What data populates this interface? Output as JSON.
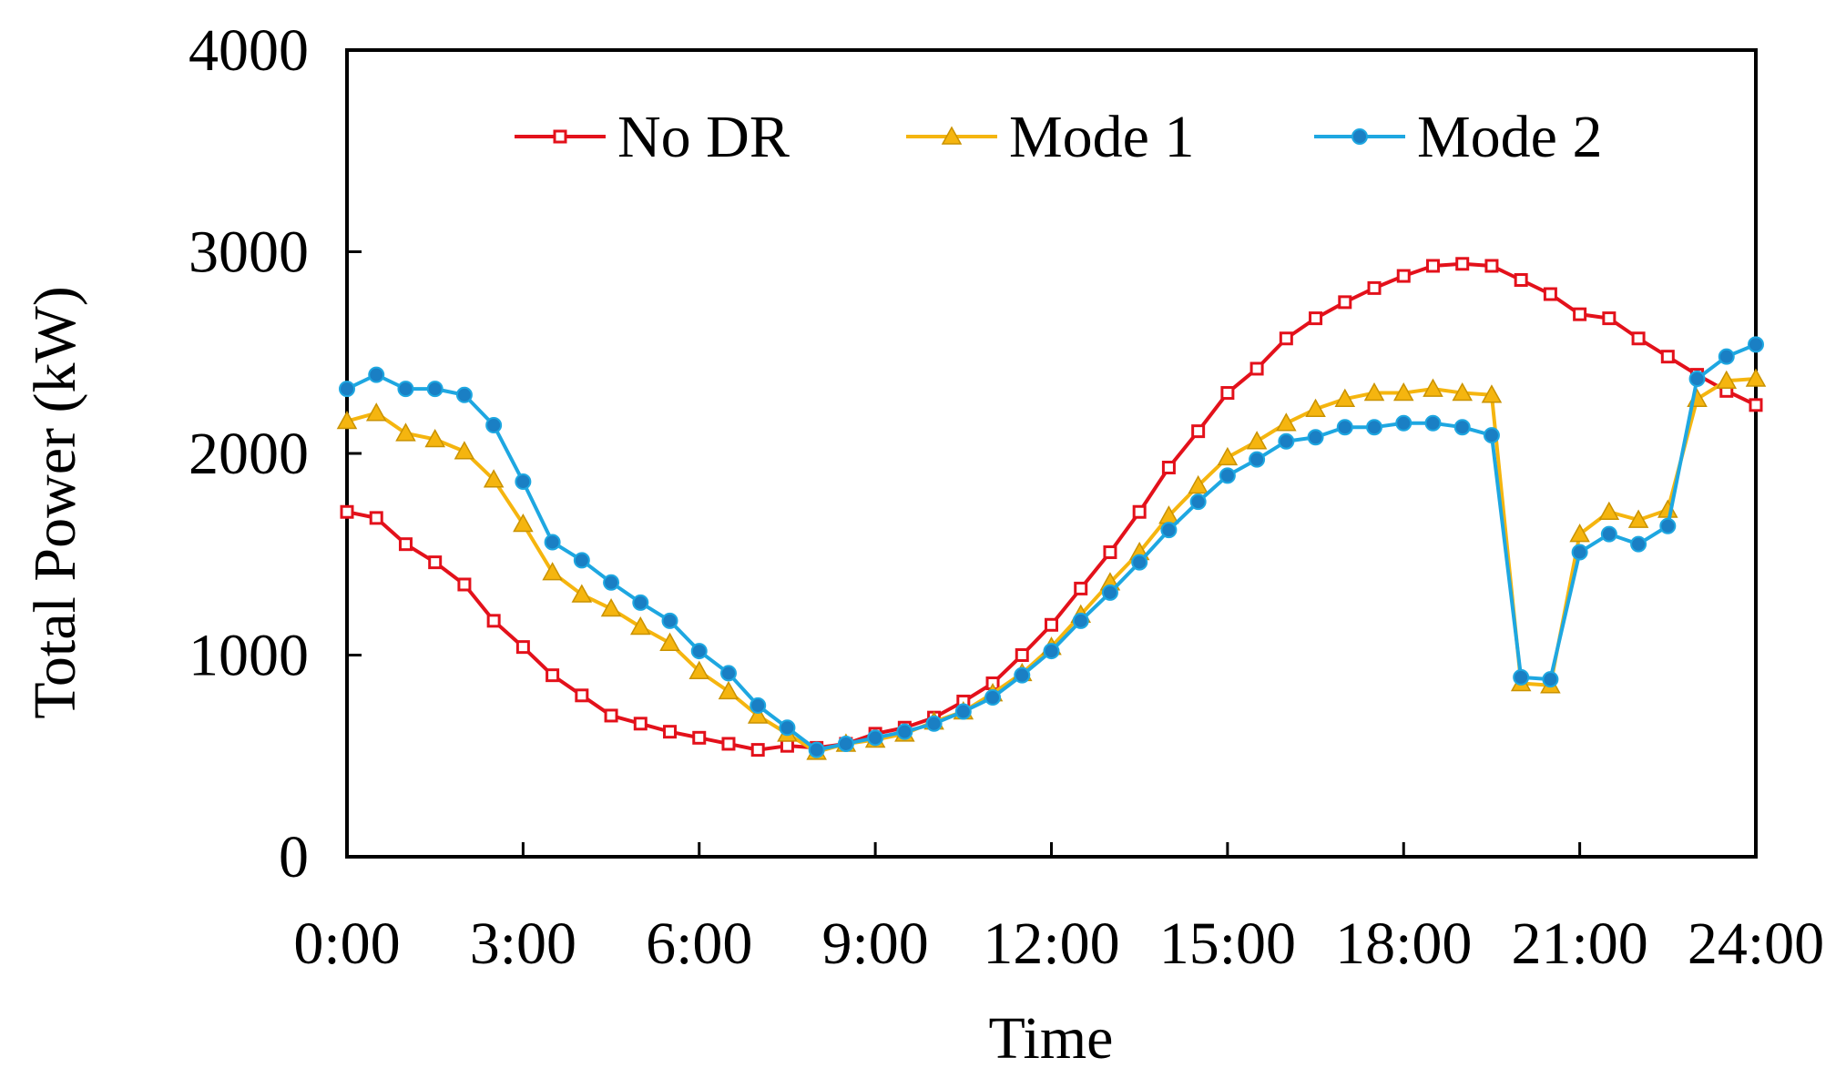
{
  "chart_data": {
    "type": "line",
    "title": "",
    "xlabel": "Time",
    "ylabel": "Total Power (kW)",
    "xlim": [
      0,
      24
    ],
    "ylim": [
      0,
      4000
    ],
    "x_ticks": [
      {
        "value": 0,
        "label": "0:00"
      },
      {
        "value": 3,
        "label": "3:00"
      },
      {
        "value": 6,
        "label": "6:00"
      },
      {
        "value": 9,
        "label": "9:00"
      },
      {
        "value": 12,
        "label": "12:00"
      },
      {
        "value": 15,
        "label": "15:00"
      },
      {
        "value": 18,
        "label": "18:00"
      },
      {
        "value": 21,
        "label": "21:00"
      },
      {
        "value": 24,
        "label": "24:00"
      }
    ],
    "y_ticks": [
      {
        "value": 0,
        "label": "0"
      },
      {
        "value": 1000,
        "label": "1000"
      },
      {
        "value": 2000,
        "label": "2000"
      },
      {
        "value": 3000,
        "label": "3000"
      },
      {
        "value": 4000,
        "label": "4000"
      }
    ],
    "grid": false,
    "legend_position": "top-center",
    "x": [
      0,
      0.5,
      1,
      1.5,
      2,
      2.5,
      3,
      3.5,
      4,
      4.5,
      5,
      5.5,
      6,
      6.5,
      7,
      7.5,
      8,
      8.5,
      9,
      9.5,
      10,
      10.5,
      11,
      11.5,
      12,
      12.5,
      13,
      13.5,
      14,
      14.5,
      15,
      15.5,
      16,
      16.5,
      17,
      17.5,
      18,
      18.5,
      19,
      19.5,
      20,
      20.5,
      21,
      21.5,
      22,
      22.5,
      23,
      23.5,
      24
    ],
    "series": [
      {
        "name": "No DR",
        "color": "#e3111b",
        "marker": "square",
        "values": [
          1710,
          1680,
          1550,
          1460,
          1350,
          1170,
          1040,
          900,
          800,
          700,
          660,
          620,
          590,
          560,
          530,
          550,
          540,
          560,
          610,
          640,
          690,
          770,
          860,
          1000,
          1150,
          1330,
          1510,
          1710,
          1930,
          2110,
          2300,
          2420,
          2570,
          2670,
          2750,
          2820,
          2880,
          2930,
          2940,
          2930,
          2860,
          2790,
          2690,
          2670,
          2570,
          2480,
          2390,
          2310,
          2240
        ]
      },
      {
        "name": "Mode 1",
        "color": "#f5b50f",
        "marker": "triangle",
        "values": [
          2160,
          2200,
          2100,
          2070,
          2010,
          1870,
          1650,
          1410,
          1300,
          1230,
          1140,
          1060,
          920,
          820,
          700,
          610,
          520,
          560,
          580,
          610,
          670,
          720,
          810,
          910,
          1040,
          1200,
          1360,
          1510,
          1690,
          1840,
          1980,
          2060,
          2150,
          2220,
          2270,
          2300,
          2300,
          2320,
          2300,
          2290,
          860,
          850,
          1600,
          1710,
          1670,
          1720,
          2270,
          2360,
          2370
        ]
      },
      {
        "name": "Mode 2",
        "color": "#1ea7e1",
        "marker": "circle",
        "values": [
          2320,
          2390,
          2320,
          2320,
          2290,
          2140,
          1860,
          1560,
          1470,
          1360,
          1260,
          1170,
          1020,
          910,
          750,
          640,
          530,
          560,
          590,
          620,
          660,
          720,
          790,
          900,
          1020,
          1170,
          1310,
          1460,
          1620,
          1760,
          1890,
          1970,
          2060,
          2080,
          2130,
          2130,
          2150,
          2150,
          2130,
          2090,
          890,
          880,
          1510,
          1600,
          1550,
          1640,
          2370,
          2480,
          2540
        ]
      }
    ]
  }
}
